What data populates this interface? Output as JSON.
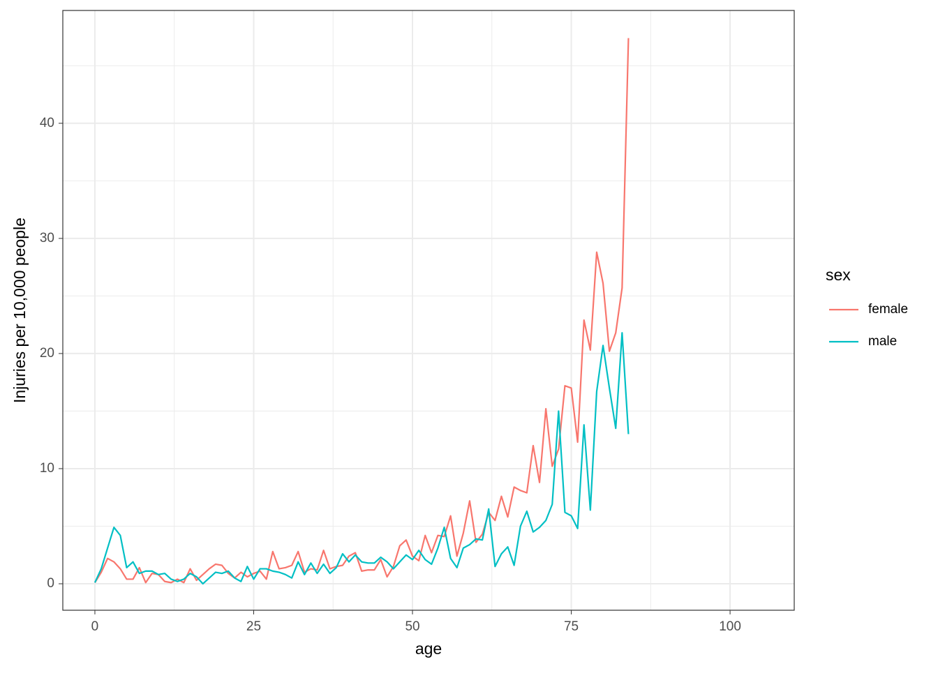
{
  "chart_data": {
    "type": "line",
    "x_label": "age",
    "y_label": "Injuries per 10,000 people",
    "x": [
      0,
      1,
      2,
      3,
      4,
      5,
      6,
      7,
      8,
      9,
      10,
      11,
      12,
      13,
      14,
      15,
      16,
      17,
      18,
      19,
      20,
      21,
      22,
      23,
      24,
      25,
      26,
      27,
      28,
      29,
      30,
      31,
      32,
      33,
      34,
      35,
      36,
      37,
      38,
      39,
      40,
      41,
      42,
      43,
      44,
      45,
      46,
      47,
      48,
      49,
      50,
      51,
      52,
      53,
      54,
      55,
      56,
      57,
      58,
      59,
      60,
      61,
      62,
      63,
      64,
      65,
      66,
      67,
      68,
      69,
      70,
      71,
      72,
      73,
      74,
      75,
      76,
      77,
      78,
      79,
      80,
      81,
      82,
      83,
      84
    ],
    "series": [
      {
        "name": "female",
        "color": "#F8766D",
        "values": [
          0.1,
          1.0,
          2.2,
          1.9,
          1.3,
          0.4,
          0.4,
          1.4,
          0.1,
          0.9,
          0.8,
          0.2,
          0.1,
          0.4,
          0.1,
          1.3,
          0.3,
          0.8,
          1.3,
          1.7,
          1.6,
          0.9,
          0.5,
          1.0,
          0.6,
          0.9,
          1.1,
          0.4,
          2.8,
          1.3,
          1.4,
          1.6,
          2.8,
          1.0,
          1.3,
          1.2,
          2.9,
          1.3,
          1.5,
          1.6,
          2.4,
          2.7,
          1.1,
          1.2,
          1.2,
          2.1,
          0.6,
          1.5,
          3.3,
          3.8,
          2.4,
          2.0,
          4.2,
          2.7,
          4.2,
          4.1,
          5.9,
          2.4,
          4.4,
          7.2,
          3.6,
          4.3,
          6.2,
          5.5,
          7.6,
          5.8,
          8.4,
          8.1,
          7.9,
          12.0,
          8.8,
          15.2,
          10.2,
          11.7,
          17.2,
          17.0,
          12.3,
          22.9,
          20.3,
          28.8,
          26.1,
          20.2,
          21.8,
          25.7,
          47.4
        ]
      },
      {
        "name": "male",
        "color": "#00BFC4",
        "values": [
          0.1,
          1.3,
          3.1,
          4.9,
          4.2,
          1.4,
          1.9,
          0.9,
          1.1,
          1.1,
          0.8,
          0.9,
          0.4,
          0.2,
          0.4,
          0.9,
          0.6,
          0.0,
          0.5,
          1.0,
          0.9,
          1.1,
          0.5,
          0.2,
          1.5,
          0.4,
          1.3,
          1.3,
          1.1,
          1.0,
          0.8,
          0.5,
          1.9,
          0.8,
          1.8,
          0.9,
          1.7,
          0.9,
          1.4,
          2.6,
          1.9,
          2.5,
          1.9,
          1.8,
          1.8,
          2.3,
          1.9,
          1.3,
          1.9,
          2.5,
          2.1,
          2.9,
          2.1,
          1.7,
          3.1,
          4.9,
          2.2,
          1.4,
          3.1,
          3.4,
          3.9,
          3.8,
          6.5,
          1.5,
          2.6,
          3.2,
          1.6,
          5.0,
          6.3,
          4.5,
          4.9,
          5.5,
          6.9,
          15.0,
          6.2,
          5.9,
          4.8,
          13.8,
          6.4,
          16.7,
          20.7,
          17.0,
          13.5,
          21.8,
          13.0
        ]
      }
    ],
    "legend_title": "sex",
    "legend": "right",
    "xlim": [
      -5.05,
      110.1
    ],
    "xticks": [
      0,
      25,
      50,
      75,
      100
    ],
    "ylim": [
      -2.3,
      49.8
    ],
    "yticks": [
      0,
      10,
      20,
      30,
      40
    ],
    "grid": true
  }
}
